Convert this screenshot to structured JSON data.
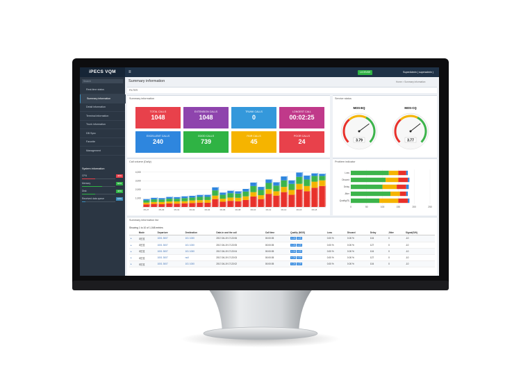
{
  "topbar": {
    "logo": "iPECS VQM",
    "license": "LICENSE",
    "user": "SuperAdmin ( superadmin )"
  },
  "sidebar": {
    "search": "Search",
    "menu": [
      "Real-time status",
      "Summary information",
      "Detail information",
      "Terminal information",
      "Trunk information",
      "DB Sync",
      "Favorite",
      "Management"
    ],
    "system_title": "System information",
    "system": [
      {
        "name": "CPU",
        "value": 40,
        "label": "40%",
        "color": "#e8414b"
      },
      {
        "name": "Memory",
        "value": 60,
        "label": "60%",
        "color": "#2fb344"
      },
      {
        "name": "Disk",
        "value": 40,
        "label": "40%",
        "color": "#2fb344"
      },
      {
        "name": "Received data queue",
        "value": 10,
        "label": "10%",
        "color": "#3c8dbc"
      }
    ]
  },
  "page": {
    "title": "Summary information",
    "breadcrumb": [
      "Home",
      "Summary information"
    ],
    "filter": "FILTER"
  },
  "summary": {
    "title": "Summary information",
    "tiles": [
      {
        "label": "TOTAL CALLS",
        "value": "1048",
        "color": "#e8414b"
      },
      {
        "label": "EXTENSION CALLS",
        "value": "1048",
        "color": "#8e44ad"
      },
      {
        "label": "TRUNK CALLS",
        "value": "0",
        "color": "#3498db"
      },
      {
        "label": "LONGEST CALL",
        "value": "00:02:25",
        "color": "#c0398a"
      },
      {
        "label": "EXCELLENT CALLS",
        "value": "240",
        "color": "#2e86de"
      },
      {
        "label": "GOOD CALLS",
        "value": "739",
        "color": "#2fb344"
      },
      {
        "label": "FAIR CALLS",
        "value": "45",
        "color": "#f5b400"
      },
      {
        "label": "POOR CALLS",
        "value": "24",
        "color": "#e8414b"
      }
    ]
  },
  "service": {
    "title": "Service status",
    "gauges": [
      {
        "name": "MOS-EQ",
        "value": 3.79,
        "lim": [
          1,
          5
        ]
      },
      {
        "name": "MOS-CQ",
        "value": 3.77,
        "lim": [
          1,
          5
        ]
      }
    ]
  },
  "call_volume": {
    "type": "bar",
    "title": "Call volume (Daily)",
    "categories": [
      "05-27",
      "05-28",
      "05-29",
      "05-30",
      "05-31",
      "06-01",
      "06-02",
      "06-03",
      "06-04",
      "06-05",
      "06-06",
      "06-07",
      "06-08",
      "06-09",
      "06-10",
      "06-11",
      "06-12",
      "06-13",
      "06-14",
      "06-15",
      "06-16",
      "06-17",
      "06-18",
      "06-19"
    ],
    "series": [
      {
        "name": "Poor",
        "color": "#e8312b",
        "values": [
          300,
          350,
          320,
          400,
          380,
          420,
          450,
          500,
          480,
          900,
          600,
          700,
          650,
          800,
          1200,
          900,
          1500,
          1300,
          1700,
          1400,
          2000,
          1800,
          2200,
          2400
        ]
      },
      {
        "name": "Fair",
        "color": "#f5b400",
        "values": [
          200,
          220,
          250,
          230,
          260,
          240,
          300,
          280,
          320,
          400,
          350,
          380,
          400,
          420,
          500,
          450,
          550,
          500,
          600,
          550,
          650,
          600,
          700,
          650
        ]
      },
      {
        "name": "Good",
        "color": "#3cb44b",
        "values": [
          250,
          300,
          280,
          320,
          300,
          350,
          330,
          380,
          360,
          600,
          450,
          500,
          480,
          550,
          700,
          600,
          700,
          650,
          750,
          700,
          800,
          750,
          650,
          500
        ]
      },
      {
        "name": "Excellent",
        "color": "#2e86de",
        "values": [
          150,
          180,
          160,
          200,
          190,
          210,
          200,
          220,
          230,
          350,
          250,
          280,
          260,
          300,
          400,
          350,
          400,
          380,
          450,
          400,
          500,
          450,
          300,
          250
        ]
      }
    ],
    "ylim": [
      0,
      4300
    ],
    "yticks": [
      {
        "value": 1000,
        "label": "1,000"
      },
      {
        "value": 2000,
        "label": "2,000"
      },
      {
        "value": 3000,
        "label": "3,000"
      },
      {
        "value": 4000,
        "label": "4,000"
      }
    ]
  },
  "problem": {
    "type": "bar",
    "title": "Problem indicator",
    "categories": [
      "Loss",
      "Discard",
      "Delay",
      "Jitter",
      "Quality(R)"
    ],
    "series": [
      {
        "name": "Good",
        "color": "#3cb44b",
        "values": [
          120,
          110,
          100,
          125,
          90
        ]
      },
      {
        "name": "Fair",
        "color": "#f5b400",
        "values": [
          30,
          40,
          45,
          30,
          60
        ]
      },
      {
        "name": "Poor",
        "color": "#e8312b",
        "values": [
          25,
          30,
          30,
          20,
          30
        ]
      },
      {
        "name": "Excellent",
        "color": "#2e86de",
        "values": [
          5,
          5,
          8,
          5,
          5
        ]
      }
    ],
    "xlim": [
      0,
      250
    ],
    "xticks": [
      0,
      50,
      100,
      150,
      200,
      250
    ]
  },
  "list": {
    "title": "Summary information list",
    "showing": "Showing 1 to 10 of 1,048 entries",
    "columns": [
      "Mode",
      "Departure",
      "Destination",
      "Date-in and the call",
      "Call time",
      "Quality (MOS)",
      "Loss",
      "Discard",
      "Delay",
      "Jitter",
      "Signal(S/N)"
    ],
    "rows": [
      [
        "내선호",
        "1001 3007",
        "101 1000",
        "2017-06-19 17:22:06",
        "00:00:05",
        [
          "4.24",
          "4.29"
        ],
        "0.00 %",
        "0.00 %",
        "104",
        "0",
        "-10"
      ],
      [
        "내선호",
        "1001 3007",
        "101 1000",
        "2017-06-19 17:22:05",
        "00:00:05",
        [
          "4.24",
          "4.29"
        ],
        "0.00 %",
        "0.00 %",
        "127",
        "0",
        "-10"
      ],
      [
        "내선호",
        "1001 3007",
        "101 1000",
        "2017-06-19 17:22:04",
        "00:00:05",
        [
          "4.24",
          "4.29"
        ],
        "0.00 %",
        "0.00 %",
        "104",
        "0",
        "-10"
      ],
      [
        "내선호",
        "1001 3007",
        "null",
        "2017-06-19 17:22:03",
        "00:00:05",
        [
          "4.24",
          "4.29"
        ],
        "0.00 %",
        "0.00 %",
        "127",
        "0",
        "-10"
      ],
      [
        "내선호",
        "1001 3007",
        "101 1000",
        "2017-06-19 17:22:02",
        "00:00:05",
        [
          "4.24",
          "4.29"
        ],
        "0.00 %",
        "0.00 %",
        "104",
        "0",
        "-10"
      ]
    ]
  }
}
